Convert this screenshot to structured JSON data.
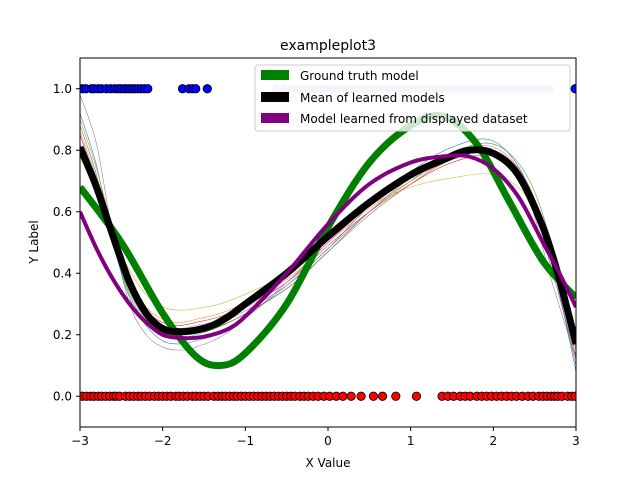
{
  "chart_data": {
    "type": "line",
    "title": "exampleplot3",
    "xlabel": "X Value",
    "ylabel": "Y Label",
    "xlim": [
      -3,
      3
    ],
    "ylim": [
      -0.1,
      1.1
    ],
    "xticks": [
      -3,
      -2,
      -1,
      0,
      1,
      2,
      3
    ],
    "xtick_labels": [
      "−3",
      "−2",
      "−1",
      "0",
      "1",
      "2",
      "3"
    ],
    "yticks": [
      0.0,
      0.2,
      0.4,
      0.6,
      0.8,
      1.0
    ],
    "ytick_labels": [
      "0.0",
      "0.2",
      "0.4",
      "0.6",
      "0.8",
      "1.0"
    ],
    "legend": {
      "location": "upper right",
      "entries": [
        {
          "label": "Ground truth model",
          "color": "#008000"
        },
        {
          "label": "Mean of learned models",
          "color": "#000000"
        },
        {
          "label": "Model learned from displayed dataset",
          "color": "#800080"
        }
      ]
    },
    "series": [
      {
        "name": "Ground truth model",
        "color": "#008000",
        "x": [
          -3.0,
          -2.5,
          -2.0,
          -1.6,
          -1.3,
          -1.0,
          -0.5,
          0.0,
          0.5,
          1.0,
          1.4,
          1.8,
          2.2,
          2.6,
          3.0
        ],
        "y": [
          0.68,
          0.5,
          0.27,
          0.13,
          0.1,
          0.14,
          0.3,
          0.55,
          0.76,
          0.88,
          0.91,
          0.82,
          0.63,
          0.44,
          0.32
        ]
      },
      {
        "name": "Mean of learned models",
        "color": "#000000",
        "x": [
          -3.0,
          -2.8,
          -2.6,
          -2.4,
          -2.2,
          -2.0,
          -1.8,
          -1.6,
          -1.4,
          -1.2,
          -1.0,
          -0.5,
          0.0,
          0.5,
          1.0,
          1.4,
          1.7,
          2.0,
          2.3,
          2.6,
          2.8,
          3.0
        ],
        "y": [
          0.81,
          0.68,
          0.52,
          0.37,
          0.27,
          0.22,
          0.21,
          0.215,
          0.23,
          0.26,
          0.3,
          0.4,
          0.52,
          0.63,
          0.72,
          0.77,
          0.8,
          0.79,
          0.72,
          0.55,
          0.38,
          0.17
        ]
      },
      {
        "name": "Model learned from displayed dataset",
        "color": "#800080",
        "x": [
          -3.0,
          -2.8,
          -2.6,
          -2.4,
          -2.2,
          -2.0,
          -1.8,
          -1.6,
          -1.4,
          -1.2,
          -1.0,
          -0.5,
          0.0,
          0.5,
          1.0,
          1.4,
          1.7,
          2.0,
          2.3,
          2.6,
          2.8,
          3.0
        ],
        "y": [
          0.6,
          0.48,
          0.38,
          0.3,
          0.24,
          0.2,
          0.19,
          0.19,
          0.2,
          0.22,
          0.26,
          0.4,
          0.56,
          0.69,
          0.76,
          0.78,
          0.78,
          0.74,
          0.65,
          0.5,
          0.4,
          0.29
        ]
      }
    ],
    "thin_model_curves": [
      {
        "color": "#808080",
        "x": [
          -3.0,
          -2.8,
          -2.6,
          -2.4,
          -2.2,
          -2.0,
          -1.8,
          -1.6,
          -1.2,
          -0.5,
          0.0,
          0.5,
          1.0,
          1.5,
          2.0,
          2.4,
          2.7,
          3.0
        ],
        "y": [
          0.98,
          0.82,
          0.52,
          0.3,
          0.2,
          0.16,
          0.15,
          0.16,
          0.21,
          0.37,
          0.5,
          0.62,
          0.71,
          0.77,
          0.79,
          0.66,
          0.38,
          0.12
        ]
      },
      {
        "color": "#1f77b4",
        "x": [
          -3.0,
          -2.8,
          -2.6,
          -2.4,
          -2.2,
          -2.0,
          -1.8,
          -1.6,
          -1.2,
          -0.5,
          0.0,
          0.5,
          1.0,
          1.5,
          2.0,
          2.4,
          2.7,
          3.0
        ],
        "y": [
          0.92,
          0.75,
          0.5,
          0.32,
          0.23,
          0.18,
          0.17,
          0.18,
          0.22,
          0.36,
          0.48,
          0.62,
          0.73,
          0.81,
          0.83,
          0.7,
          0.45,
          0.08
        ]
      },
      {
        "color": "#2ca02c",
        "x": [
          -3.0,
          -2.8,
          -2.6,
          -2.4,
          -2.2,
          -2.0,
          -1.8,
          -1.6,
          -1.2,
          -0.5,
          0.0,
          0.5,
          1.0,
          1.5,
          2.0,
          2.4,
          2.7,
          3.0
        ],
        "y": [
          0.88,
          0.72,
          0.5,
          0.33,
          0.24,
          0.2,
          0.19,
          0.2,
          0.24,
          0.35,
          0.47,
          0.6,
          0.7,
          0.79,
          0.82,
          0.72,
          0.5,
          0.15
        ]
      },
      {
        "color": "#d62728",
        "x": [
          -3.0,
          -2.8,
          -2.6,
          -2.4,
          -2.2,
          -2.0,
          -1.8,
          -1.6,
          -1.2,
          -0.5,
          0.0,
          0.5,
          1.0,
          1.5,
          2.0,
          2.4,
          2.7,
          3.0
        ],
        "y": [
          0.85,
          0.7,
          0.52,
          0.37,
          0.28,
          0.24,
          0.23,
          0.24,
          0.27,
          0.37,
          0.49,
          0.6,
          0.69,
          0.76,
          0.78,
          0.68,
          0.45,
          0.13
        ]
      },
      {
        "color": "#ff7f0e",
        "x": [
          -3.0,
          -2.8,
          -2.6,
          -2.4,
          -2.2,
          -2.0,
          -1.8,
          -1.6,
          -1.2,
          -0.5,
          0.0,
          0.5,
          1.0,
          1.5,
          2.0,
          2.4,
          2.7,
          3.0
        ],
        "y": [
          0.9,
          0.74,
          0.54,
          0.38,
          0.29,
          0.25,
          0.24,
          0.25,
          0.28,
          0.38,
          0.5,
          0.61,
          0.7,
          0.77,
          0.8,
          0.7,
          0.47,
          0.18
        ]
      },
      {
        "color": "#bcbd22",
        "x": [
          -3.0,
          -2.8,
          -2.6,
          -2.4,
          -2.2,
          -2.0,
          -1.8,
          -1.6,
          -1.2,
          -0.5,
          0.0,
          0.5,
          1.0,
          1.5,
          2.0,
          2.4,
          2.7,
          3.0
        ],
        "y": [
          0.78,
          0.66,
          0.52,
          0.41,
          0.33,
          0.29,
          0.28,
          0.285,
          0.31,
          0.4,
          0.52,
          0.62,
          0.68,
          0.71,
          0.72,
          0.65,
          0.46,
          0.2
        ]
      },
      {
        "color": "#9467bd",
        "x": [
          -3.0,
          -2.8,
          -2.6,
          -2.4,
          -2.2,
          -2.0,
          -1.8,
          -1.6,
          -1.2,
          -0.5,
          0.0,
          0.5,
          1.0,
          1.5,
          2.0,
          2.4,
          2.7,
          3.0
        ],
        "y": [
          0.82,
          0.68,
          0.5,
          0.35,
          0.26,
          0.22,
          0.21,
          0.22,
          0.25,
          0.36,
          0.48,
          0.6,
          0.71,
          0.78,
          0.8,
          0.69,
          0.44,
          0.1
        ]
      },
      {
        "color": "#e377c2",
        "x": [
          -3.0,
          -2.8,
          -2.6,
          -2.4,
          -2.2,
          -2.0,
          -1.8,
          -1.6,
          -1.2,
          -0.5,
          0.0,
          0.5,
          1.0,
          1.5,
          2.0,
          2.4,
          2.7,
          3.0
        ],
        "y": [
          0.86,
          0.71,
          0.51,
          0.36,
          0.27,
          0.23,
          0.22,
          0.23,
          0.26,
          0.37,
          0.5,
          0.62,
          0.72,
          0.79,
          0.81,
          0.7,
          0.46,
          0.16
        ]
      },
      {
        "color": "#8c564b",
        "x": [
          -3.0,
          -2.8,
          -2.6,
          -2.4,
          -2.2,
          -2.0,
          -1.8,
          -1.6,
          -1.2,
          -0.5,
          0.0,
          0.5,
          1.0,
          1.5,
          2.0,
          2.4,
          2.7,
          3.0
        ],
        "y": [
          0.8,
          0.66,
          0.49,
          0.34,
          0.25,
          0.21,
          0.2,
          0.21,
          0.24,
          0.35,
          0.47,
          0.59,
          0.69,
          0.77,
          0.79,
          0.68,
          0.42,
          0.12
        ]
      }
    ],
    "scatter_y1_dark": {
      "color": "#0000ff",
      "y": 1.0,
      "x": [
        -2.97,
        -2.93,
        -2.86,
        -2.83,
        -2.78,
        -2.74,
        -2.68,
        -2.63,
        -2.58,
        -2.54,
        -2.51,
        -2.47,
        -2.44,
        -2.4,
        -2.37,
        -2.34,
        -2.3,
        -2.26,
        -2.22,
        -2.18,
        -1.76,
        -1.68,
        -1.64,
        -1.6,
        -1.46,
        2.99
      ]
    },
    "scatter_y1_light": {
      "color": "#c8c8f0",
      "y": 1.0,
      "x": [
        -0.62,
        -0.52,
        -0.42,
        -0.36,
        -0.28,
        -0.21,
        -0.15,
        -0.08,
        -0.02,
        0.05,
        0.12,
        0.2,
        0.27,
        0.35,
        0.43,
        0.5,
        0.58,
        0.66,
        0.74,
        0.82,
        0.9,
        0.98,
        1.06,
        1.14,
        1.22,
        1.3,
        1.38,
        1.45,
        1.52,
        1.6,
        1.68,
        1.75,
        1.82,
        1.9,
        1.97,
        2.05,
        2.12,
        2.2,
        2.28,
        2.36,
        2.44,
        2.52,
        2.6,
        2.68
      ]
    },
    "scatter_y0": {
      "color": "#ff0000",
      "y": 0.0,
      "x": [
        -2.97,
        -2.92,
        -2.87,
        -2.83,
        -2.78,
        -2.74,
        -2.69,
        -2.64,
        -2.59,
        -2.56,
        -2.52,
        -2.45,
        -2.4,
        -2.35,
        -2.3,
        -2.26,
        -2.21,
        -2.16,
        -2.1,
        -2.05,
        -2.0,
        -1.95,
        -1.9,
        -1.84,
        -1.8,
        -1.75,
        -1.7,
        -1.64,
        -1.6,
        -1.55,
        -1.5,
        -1.45,
        -1.38,
        -1.33,
        -1.28,
        -1.24,
        -1.19,
        -1.14,
        -1.1,
        -1.05,
        -1.0,
        -0.95,
        -0.9,
        -0.85,
        -0.8,
        -0.75,
        -0.7,
        -0.65,
        -0.6,
        -0.55,
        -0.5,
        -0.45,
        -0.4,
        -0.34,
        -0.29,
        -0.24,
        -0.18,
        -0.12,
        -0.05,
        0.02,
        0.1,
        0.18,
        0.28,
        0.4,
        0.55,
        0.66,
        0.82,
        1.07,
        1.38,
        1.45,
        1.52,
        1.6,
        1.66,
        1.72,
        1.8,
        1.86,
        1.92,
        1.98,
        2.04,
        2.1,
        2.16,
        2.22,
        2.28,
        2.35,
        2.42,
        2.48,
        2.55,
        2.6,
        2.65,
        2.7,
        2.74,
        2.78,
        2.83,
        2.9,
        2.95,
        2.99
      ]
    }
  }
}
